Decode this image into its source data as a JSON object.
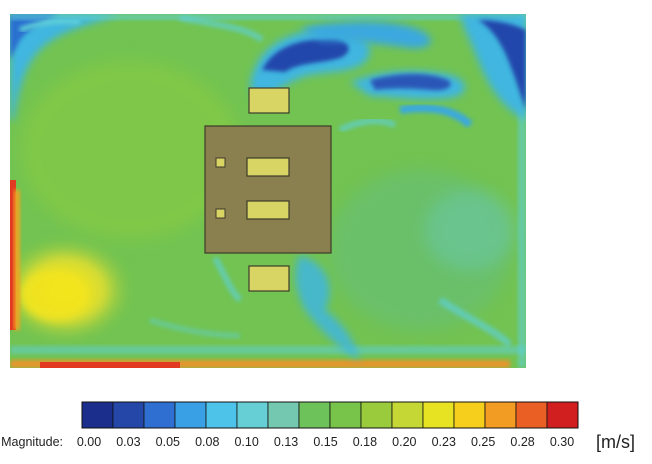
{
  "legend": {
    "label": "Velocity Magnitude:",
    "unit": "[m/s]",
    "ticks": [
      "0.00",
      "0.03",
      "0.05",
      "0.08",
      "0.10",
      "0.13",
      "0.15",
      "0.18",
      "0.20",
      "0.23",
      "0.25",
      "0.28",
      "0.30"
    ],
    "min": 0.0,
    "max": 0.3,
    "bands": 16
  },
  "colors": {
    "blue_dark": "#1f3c9e",
    "blue": "#2f6fd1",
    "cyan": "#39b3e6",
    "cyan_light": "#5fd0d8",
    "teal": "#6cc7a6",
    "green": "#6ec25a",
    "green_mid": "#7bc548",
    "yellow_green": "#c8d935",
    "yellow": "#f3e51b",
    "orange": "#f3a324",
    "red": "#e23a22",
    "red_dark": "#d11f1f",
    "obstacle_fill": "#8a7f4f",
    "obstacle_stroke": "#3e3a2a",
    "block_fill": "#d8d565"
  }
}
